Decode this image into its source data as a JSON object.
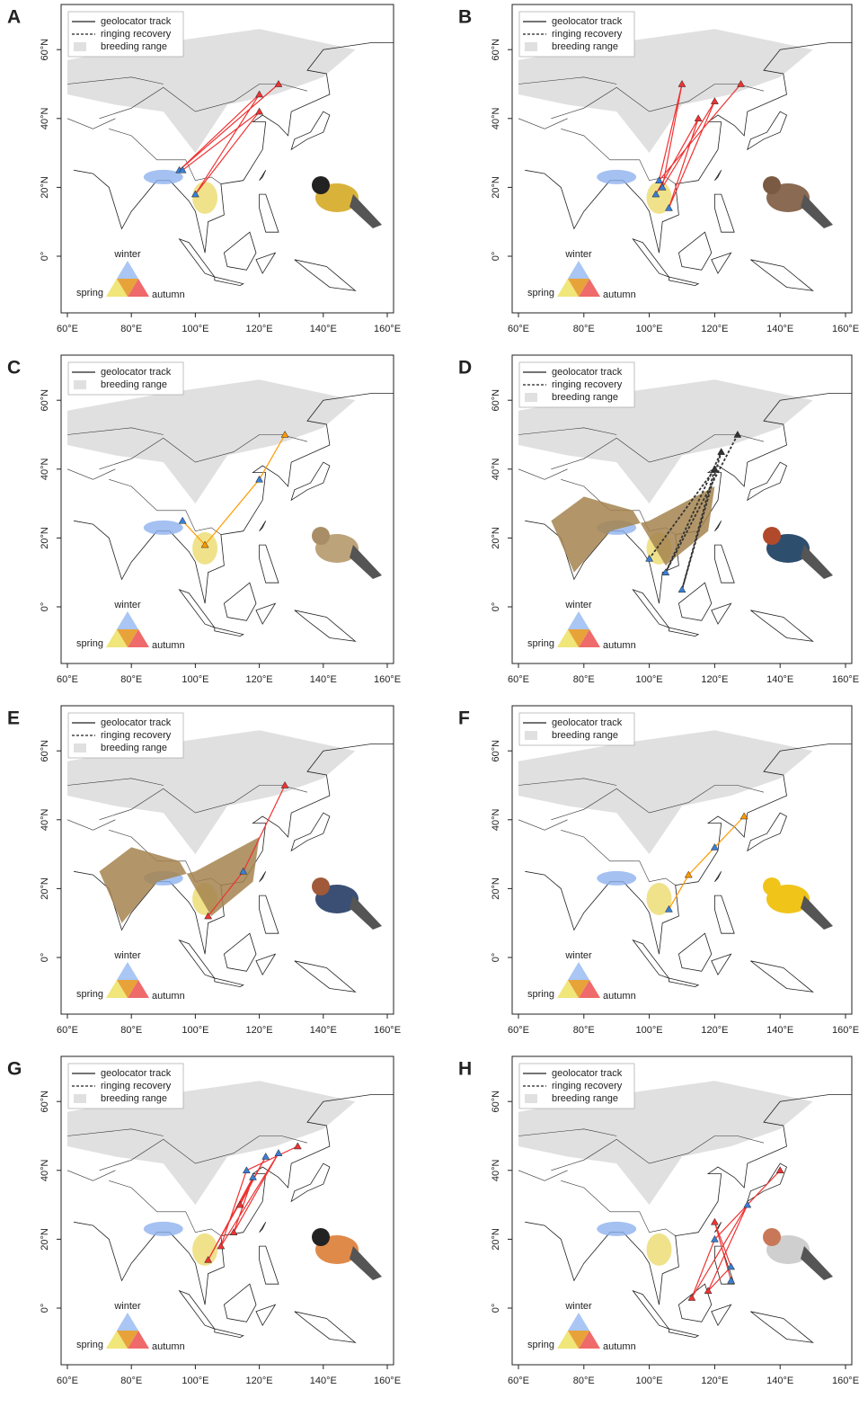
{
  "panels": [
    {
      "label": "A",
      "legend": [
        "geolocator track",
        "ringing recovery",
        "breeding range"
      ],
      "y_ticks": [
        "60°N",
        "40°N",
        "20°N",
        "0°"
      ],
      "x_ticks": [
        "60°E",
        "80°E",
        "100°E",
        "120°E",
        "140°E",
        "160°E"
      ],
      "season_key": {
        "top": "winter",
        "left": "spring",
        "right": "autumn"
      }
    },
    {
      "label": "B",
      "legend": [
        "geolocator track",
        "ringing recovery",
        "breeding range"
      ],
      "y_ticks": [
        "60°N",
        "40°N",
        "20°N",
        "0°"
      ],
      "x_ticks": [
        "60°E",
        "80°E",
        "100°E",
        "120°E",
        "140°E",
        "160°E"
      ],
      "season_key": {
        "top": "winter",
        "left": "spring",
        "right": "autumn"
      }
    },
    {
      "label": "C",
      "legend": [
        "geolocator track",
        "breeding range"
      ],
      "y_ticks": [
        "60°N",
        "40°N",
        "20°N",
        "0°"
      ],
      "x_ticks": [
        "60°E",
        "80°E",
        "100°E",
        "120°E",
        "140°E",
        "160°E"
      ],
      "season_key": {
        "top": "winter",
        "left": "spring",
        "right": "autumn"
      }
    },
    {
      "label": "D",
      "legend": [
        "geolocator track",
        "ringing recovery",
        "breeding range"
      ],
      "y_ticks": [
        "60°N",
        "40°N",
        "20°N",
        "0°"
      ],
      "x_ticks": [
        "60°E",
        "80°E",
        "100°E",
        "120°E",
        "140°E",
        "160°E"
      ],
      "season_key": {
        "top": "winter",
        "left": "spring",
        "right": "autumn"
      }
    },
    {
      "label": "E",
      "legend": [
        "geolocator track",
        "ringing recovery",
        "breeding range"
      ],
      "y_ticks": [
        "60°N",
        "40°N",
        "20°N",
        "0°"
      ],
      "x_ticks": [
        "60°E",
        "80°E",
        "100°E",
        "120°E",
        "140°E",
        "160°E"
      ],
      "season_key": {
        "top": "winter",
        "left": "spring",
        "right": "autumn"
      }
    },
    {
      "label": "F",
      "legend": [
        "geolocator track",
        "breeding range"
      ],
      "y_ticks": [
        "60°N",
        "40°N",
        "20°N",
        "0°"
      ],
      "x_ticks": [
        "60°E",
        "80°E",
        "100°E",
        "120°E",
        "140°E",
        "160°E"
      ],
      "season_key": {
        "top": "winter",
        "left": "spring",
        "right": "autumn"
      }
    },
    {
      "label": "G",
      "legend": [
        "geolocator track",
        "ringing recovery",
        "breeding range"
      ],
      "y_ticks": [
        "60°N",
        "40°N",
        "20°N",
        "0°"
      ],
      "x_ticks": [
        "60°E",
        "80°E",
        "100°E",
        "120°E",
        "140°E",
        "160°E"
      ],
      "season_key": {
        "top": "winter",
        "left": "spring",
        "right": "autumn"
      }
    },
    {
      "label": "H",
      "legend": [
        "geolocator track",
        "ringing recovery",
        "breeding range"
      ],
      "y_ticks": [
        "60°N",
        "40°N",
        "20°N",
        "0°"
      ],
      "x_ticks": [
        "60°E",
        "80°E",
        "100°E",
        "120°E",
        "140°E",
        "160°E"
      ],
      "season_key": {
        "top": "winter",
        "left": "spring",
        "right": "autumn"
      }
    }
  ]
}
